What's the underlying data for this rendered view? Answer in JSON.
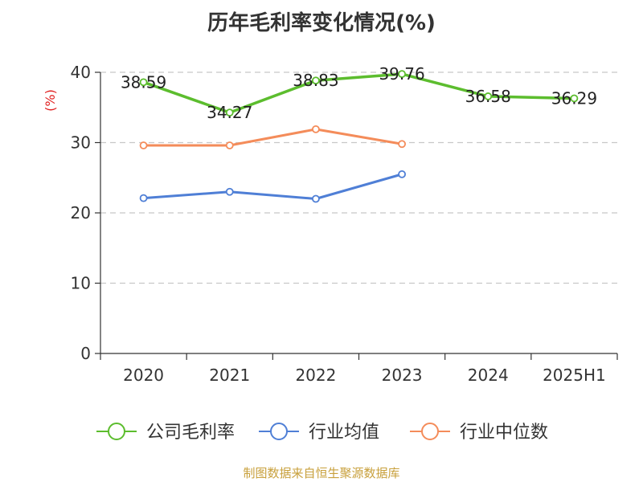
{
  "chart_data": {
    "type": "line",
    "title": "历年毛利率变化情况(%)",
    "ylabel": "(%)",
    "categories": [
      "2020",
      "2021",
      "2022",
      "2023",
      "2024",
      "2025H1"
    ],
    "ylim": [
      0,
      40
    ],
    "yticks": [
      0,
      10,
      20,
      30,
      40
    ],
    "grid": true,
    "legend_position": "bottom",
    "series": [
      {
        "name": "公司毛利率",
        "color": "#5cbd2e",
        "values": [
          38.59,
          34.27,
          38.83,
          39.76,
          36.58,
          36.29
        ],
        "labels": [
          "38.59",
          "34.27",
          "38.83",
          "39.76",
          "36.58",
          "36.29"
        ]
      },
      {
        "name": "行业均值",
        "color": "#4f7fd6",
        "values": [
          22.1,
          23.0,
          22.0,
          25.5,
          null,
          null
        ]
      },
      {
        "name": "行业中位数",
        "color": "#f48c5a",
        "values": [
          29.6,
          29.6,
          31.9,
          29.8,
          null,
          null
        ]
      }
    ]
  },
  "ytick_labels": [
    "0",
    "10",
    "20",
    "30",
    "40"
  ],
  "ylabel_color": "#e02020",
  "source_text": "制图数据来自恒生聚源数据库"
}
